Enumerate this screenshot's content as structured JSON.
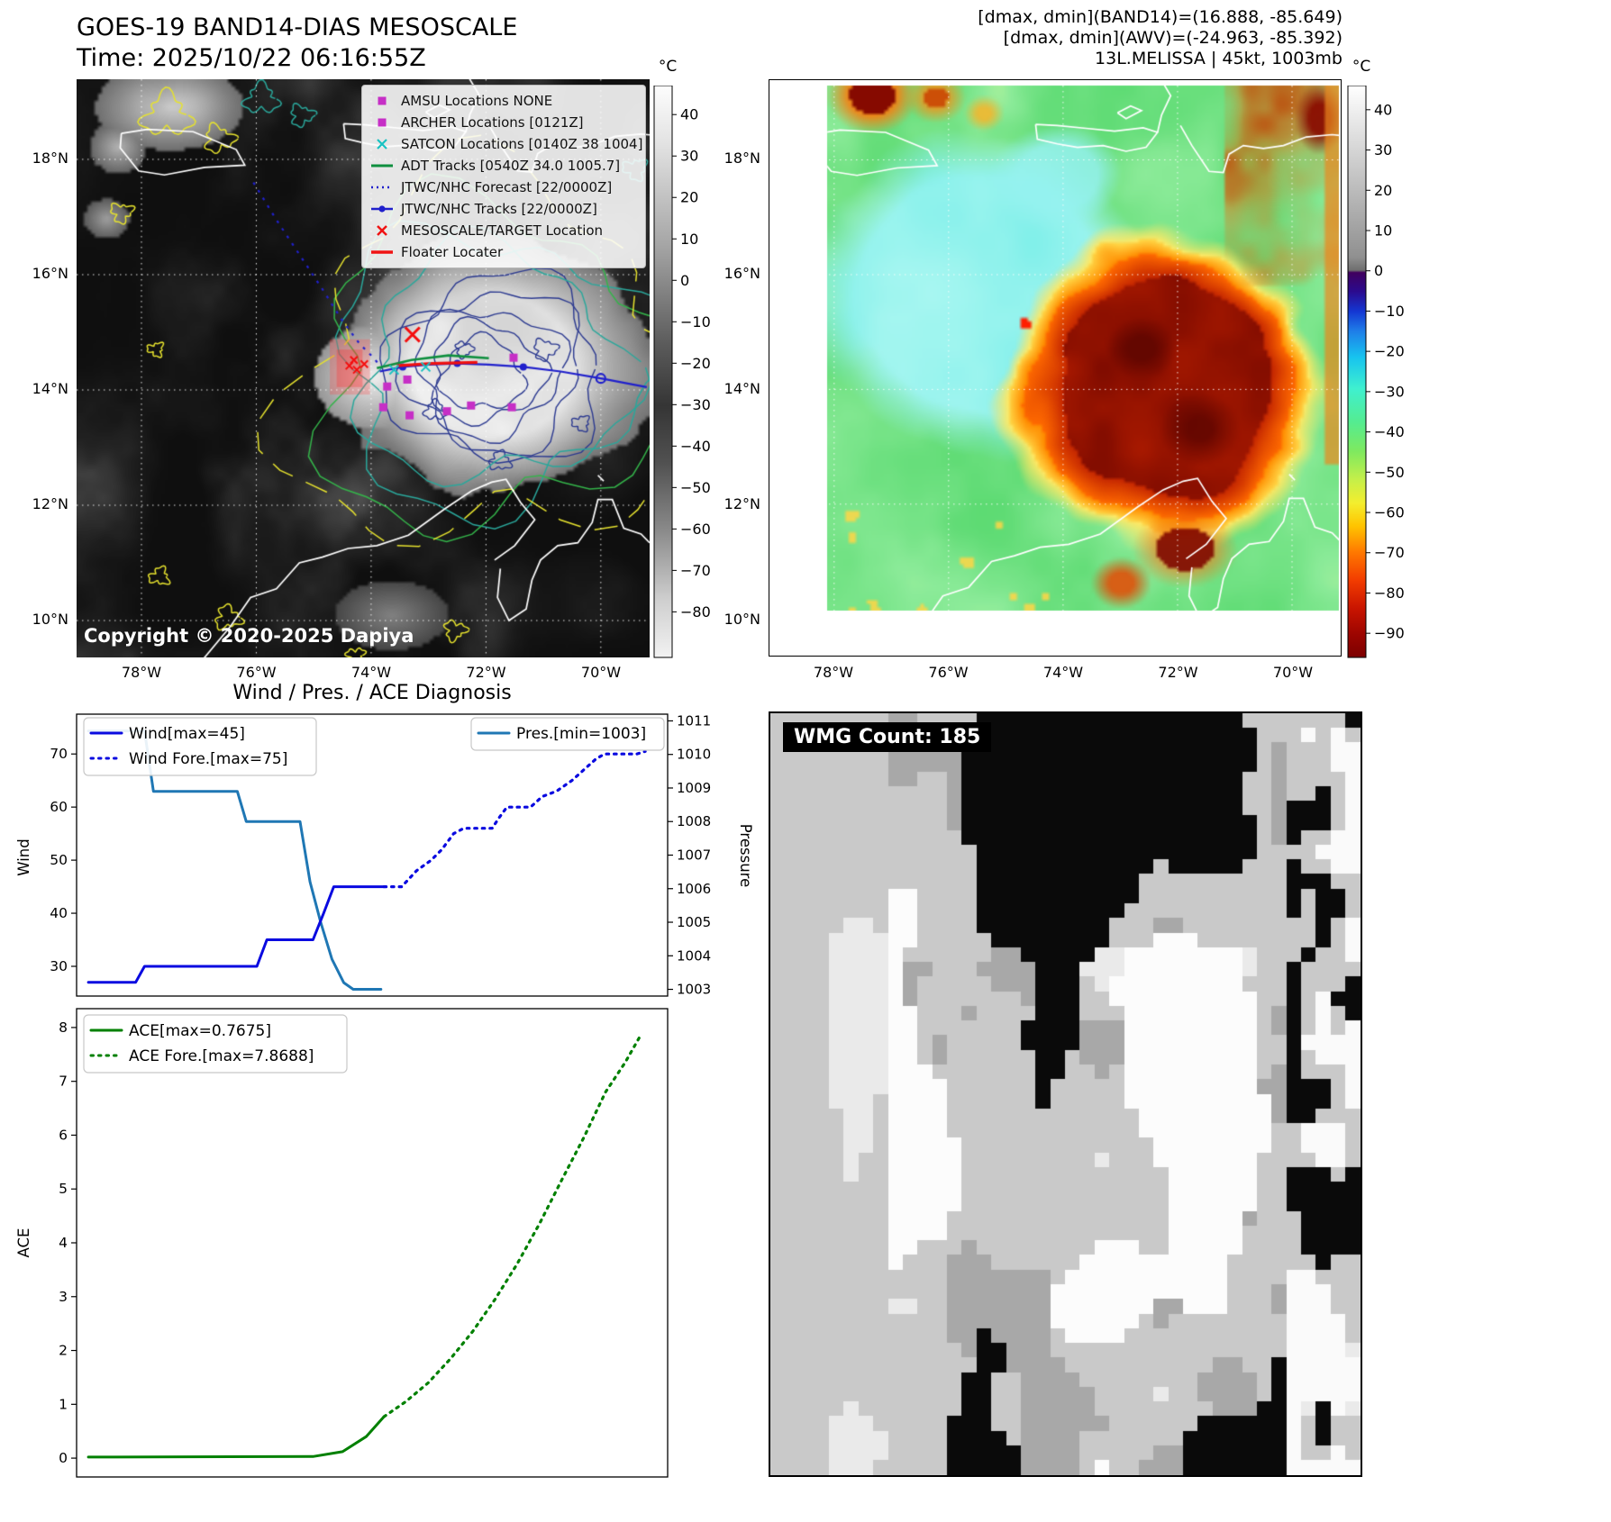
{
  "band14_panel": {
    "title": "GOES-19 BAND14-DIAS MESOSCALE",
    "time": "Time: 2025/10/22 06:16:55Z",
    "copyright": "Copyright © 2020-2025 Dapiya",
    "colorbar": {
      "unit": "°C",
      "ticks": [
        40,
        30,
        20,
        10,
        0,
        -10,
        -20,
        -30,
        -40,
        -50,
        -60,
        -70,
        -80
      ]
    },
    "lat_ticks": [
      "18°N",
      "16°N",
      "14°N",
      "12°N",
      "10°N"
    ],
    "lon_ticks": [
      "78°W",
      "76°W",
      "74°W",
      "72°W",
      "70°W"
    ],
    "legend": {
      "items": [
        {
          "icon": "magenta-square",
          "label": "AMSU Locations NONE"
        },
        {
          "icon": "magenta-square",
          "label": "ARCHER Locations [0121Z]"
        },
        {
          "icon": "cyan-x",
          "label": "SATCON Locations [0140Z 38 1004]"
        },
        {
          "icon": "green-line",
          "label": "ADT Tracks [0540Z 34.0 1005.7]"
        },
        {
          "icon": "blue-dotted-line",
          "label": "JTWC/NHC Forecast [22/0000Z]"
        },
        {
          "icon": "blue-line-dot",
          "label": "JTWC/NHC Tracks [22/0000Z]"
        },
        {
          "icon": "red-x",
          "label": "MESOSCALE/TARGET Location"
        },
        {
          "icon": "red-line",
          "label": "Floater Locater"
        }
      ]
    }
  },
  "awv_panel": {
    "title_lines": [
      "[dmax, dmin](BAND14)=(16.888, -85.649)",
      "[dmax, dmin](AWV)=(-24.963, -85.392)",
      "13L.MELISSA | 45kt, 1003mb"
    ],
    "colorbar": {
      "unit": "°C",
      "ticks": [
        40,
        30,
        20,
        10,
        0,
        -10,
        -20,
        -30,
        -40,
        -50,
        -60,
        -70,
        -80,
        -90
      ]
    },
    "lat_ticks": [
      "18°N",
      "16°N",
      "14°N",
      "12°N",
      "10°N"
    ],
    "lon_ticks": [
      "78°W",
      "76°W",
      "74°W",
      "72°W",
      "70°W"
    ]
  },
  "wmg_panel": {
    "count_label": "WMG Count: 185"
  },
  "chart_data": [
    {
      "type": "line",
      "title": "Wind / Pres. / ACE Diagnosis",
      "ylabel": "Wind",
      "ylabel_right": "Pressure",
      "xlim": [
        0,
        1
      ],
      "ylim": [
        24.4,
        77.5
      ],
      "yticks": [
        30,
        40,
        50,
        60,
        70
      ],
      "ylim_right": [
        1002.8,
        1011.2
      ],
      "yticks_right": [
        1003,
        1004,
        1005,
        1006,
        1007,
        1008,
        1009,
        1010,
        1011
      ],
      "series": [
        {
          "name": "Wind[max=45]",
          "axis": "left",
          "style": "solid",
          "color": "#0a0ae0",
          "points": [
            [
              0.02,
              27
            ],
            [
              0.1,
              27
            ],
            [
              0.115,
              30
            ],
            [
              0.305,
              30
            ],
            [
              0.322,
              35
            ],
            [
              0.4,
              35
            ],
            [
              0.418,
              40
            ],
            [
              0.435,
              45
            ],
            [
              0.52,
              45
            ]
          ]
        },
        {
          "name": "Wind Fore.[max=75]",
          "axis": "left",
          "style": "dotted",
          "color": "#0a0ae0",
          "points": [
            [
              0.52,
              45
            ],
            [
              0.55,
              45
            ],
            [
              0.575,
              48
            ],
            [
              0.6,
              50
            ],
            [
              0.618,
              52
            ],
            [
              0.638,
              55
            ],
            [
              0.655,
              56
            ],
            [
              0.703,
              56
            ],
            [
              0.715,
              58
            ],
            [
              0.728,
              60
            ],
            [
              0.768,
              60
            ],
            [
              0.788,
              62
            ],
            [
              0.812,
              63
            ],
            [
              0.838,
              65
            ],
            [
              0.858,
              67
            ],
            [
              0.878,
              69
            ],
            [
              0.893,
              70
            ],
            [
              0.948,
              70
            ],
            [
              0.962,
              70.5
            ]
          ]
        },
        {
          "name": "Pres.[min=1003]",
          "axis": "right",
          "style": "solid",
          "color": "#1f77b4",
          "points": [
            [
              0.02,
              1010.7
            ],
            [
              0.115,
              1010.7
            ],
            [
              0.13,
              1008.9
            ],
            [
              0.272,
              1008.9
            ],
            [
              0.287,
              1008.0
            ],
            [
              0.378,
              1008.0
            ],
            [
              0.395,
              1006.2
            ],
            [
              0.413,
              1005.0
            ],
            [
              0.432,
              1003.9
            ],
            [
              0.452,
              1003.2
            ],
            [
              0.468,
              1003.0
            ],
            [
              0.515,
              1003.0
            ]
          ]
        }
      ]
    },
    {
      "type": "line",
      "ylabel": "ACE",
      "xlim": [
        0,
        1
      ],
      "ylim": [
        -0.35,
        8.35
      ],
      "yticks": [
        0,
        1,
        2,
        3,
        4,
        5,
        6,
        7,
        8
      ],
      "series": [
        {
          "name": "ACE[max=0.7675]",
          "style": "solid",
          "color": "#008000",
          "points": [
            [
              0.02,
              0.02
            ],
            [
              0.4,
              0.03
            ],
            [
              0.45,
              0.12
            ],
            [
              0.49,
              0.4
            ],
            [
              0.52,
              0.77
            ]
          ]
        },
        {
          "name": "ACE Fore.[max=7.8688]",
          "style": "dotted",
          "color": "#008000",
          "points": [
            [
              0.52,
              0.77
            ],
            [
              0.557,
              1.05
            ],
            [
              0.595,
              1.4
            ],
            [
              0.633,
              1.85
            ],
            [
              0.67,
              2.35
            ],
            [
              0.708,
              2.95
            ],
            [
              0.745,
              3.6
            ],
            [
              0.783,
              4.35
            ],
            [
              0.82,
              5.15
            ],
            [
              0.858,
              5.95
            ],
            [
              0.895,
              6.8
            ],
            [
              0.928,
              7.35
            ],
            [
              0.955,
              7.87
            ]
          ]
        }
      ]
    }
  ]
}
